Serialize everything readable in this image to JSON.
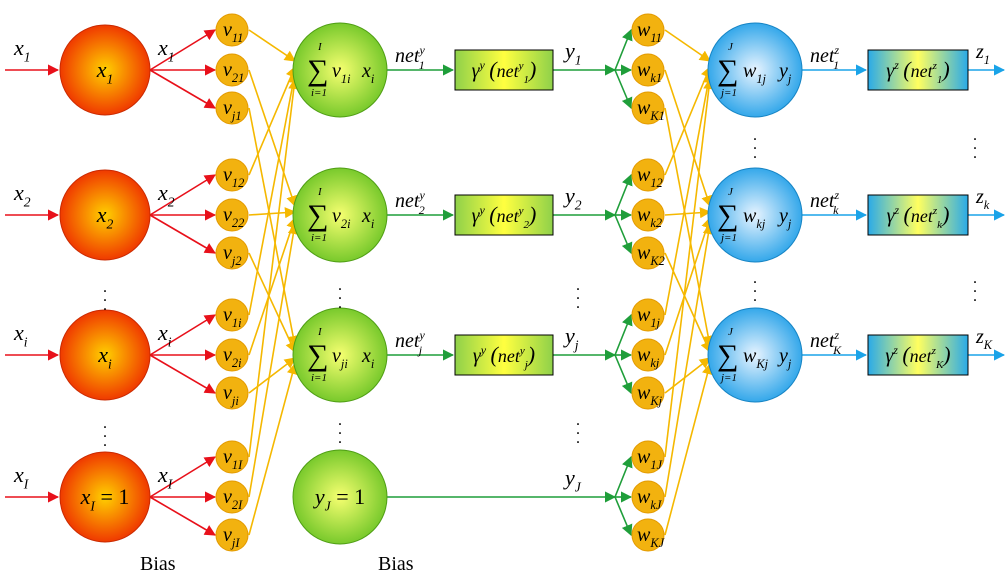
{
  "colors": {
    "input_arrow": "#e8101a",
    "v_arrow": "#f5b800",
    "hidden_arrow": "#1f9e3a",
    "output_arrow": "#1aa3e8",
    "orange_node_inner": "#ffd000",
    "orange_node_outer": "#ee2a00",
    "green_node_inner": "#f6ff70",
    "green_node_outer": "#6cc425",
    "blue_node_inner": "#e8f4ff",
    "blue_node_outer": "#22a0e8",
    "weight_node": "#f2b20f",
    "weight_node_stroke": "#e39a00"
  },
  "input_layer": {
    "inputs": [
      {
        "in_label": "x",
        "in_sub": "1",
        "node_main": "x",
        "node_sub": "1",
        "node_rest": "",
        "out_label": "x",
        "out_sub": "1"
      },
      {
        "in_label": "x",
        "in_sub": "2",
        "node_main": "x",
        "node_sub": "2",
        "node_rest": "",
        "out_label": "x",
        "out_sub": "2"
      },
      {
        "in_label": "x",
        "in_sub": "i",
        "node_main": "x",
        "node_sub": "i",
        "node_rest": "",
        "out_label": "x",
        "out_sub": "i"
      },
      {
        "in_label": "x",
        "in_sub": "I",
        "node_main": "x",
        "node_sub": "I",
        "node_rest": " = 1",
        "out_label": "x",
        "out_sub": "I"
      }
    ],
    "bias_label": "Bias",
    "ellipsis": "."
  },
  "v_weights": [
    [
      {
        "m": "v",
        "s": "11"
      },
      {
        "m": "v",
        "s": "21"
      },
      {
        "m": "v",
        "s": "j1"
      }
    ],
    [
      {
        "m": "v",
        "s": "12"
      },
      {
        "m": "v",
        "s": "22"
      },
      {
        "m": "v",
        "s": "j2"
      }
    ],
    [
      {
        "m": "v",
        "s": "1i"
      },
      {
        "m": "v",
        "s": "2i"
      },
      {
        "m": "v",
        "s": "ji"
      }
    ],
    [
      {
        "m": "v",
        "s": "1I"
      },
      {
        "m": "v",
        "s": "2I"
      },
      {
        "m": "v",
        "s": "jI"
      }
    ]
  ],
  "hidden_layer": {
    "sum_upper": "I",
    "sum_lower": "i=1",
    "nodes": [
      {
        "term": "v",
        "term_sub": "1i",
        "var": "x",
        "var_sub": "i",
        "net": "net",
        "net_sub": "1",
        "net_sup": "y",
        "y": "y",
        "y_sub": "1"
      },
      {
        "term": "v",
        "term_sub": "2i",
        "var": "x",
        "var_sub": "i",
        "net": "net",
        "net_sub": "2",
        "net_sup": "y",
        "y": "y",
        "y_sub": "2"
      },
      {
        "term": "v",
        "term_sub": "ji",
        "var": "x",
        "var_sub": "i",
        "net": "net",
        "net_sub": "j",
        "net_sup": "y",
        "y": "y",
        "y_sub": "j"
      }
    ],
    "bias_node": {
      "main": "y",
      "sub": "J",
      "rest": " = 1",
      "y": "y",
      "y_sub": "J"
    },
    "bias_label": "Bias",
    "activation": {
      "gamma": "γ",
      "sup": "y",
      "net": "net"
    }
  },
  "w_weights": [
    [
      {
        "m": "w",
        "s": "11"
      },
      {
        "m": "w",
        "s": "k1"
      },
      {
        "m": "w",
        "s": "K1"
      }
    ],
    [
      {
        "m": "w",
        "s": "12"
      },
      {
        "m": "w",
        "s": "k2"
      },
      {
        "m": "w",
        "s": "K2"
      }
    ],
    [
      {
        "m": "w",
        "s": "1j"
      },
      {
        "m": "w",
        "s": "kj"
      },
      {
        "m": "w",
        "s": "Kj"
      }
    ],
    [
      {
        "m": "w",
        "s": "1J"
      },
      {
        "m": "w",
        "s": "kJ"
      },
      {
        "m": "w",
        "s": "KJ"
      }
    ]
  ],
  "output_layer": {
    "sum_upper": "J",
    "sum_lower": "j=1",
    "nodes": [
      {
        "term": "w",
        "term_sub": "1j",
        "var": "y",
        "var_sub": "j",
        "net": "net",
        "net_sub": "1",
        "net_sup": "z",
        "z": "z",
        "z_sub": "1"
      },
      {
        "term": "w",
        "term_sub": "kj",
        "var": "y",
        "var_sub": "j",
        "net": "net",
        "net_sub": "k",
        "net_sup": "z",
        "z": "z",
        "z_sub": "k"
      },
      {
        "term": "w",
        "term_sub": "Kj",
        "var": "y",
        "var_sub": "j",
        "net": "net",
        "net_sub": "K",
        "net_sup": "z",
        "z": "z",
        "z_sub": "K"
      }
    ],
    "activation": {
      "gamma": "γ",
      "sup": "z",
      "net": "net"
    }
  }
}
